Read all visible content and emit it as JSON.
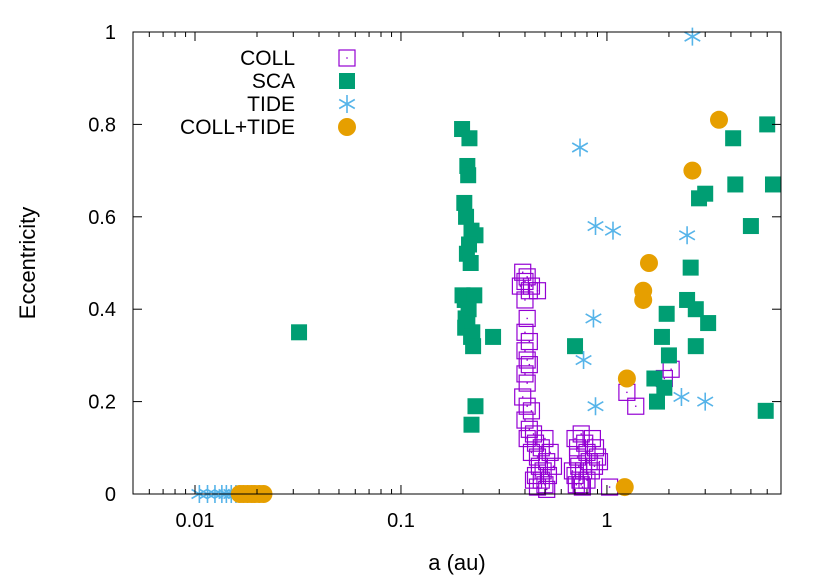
{
  "chart_data": {
    "type": "scatter",
    "title": "",
    "xlabel": "a (au)",
    "ylabel": "Eccentricity",
    "xscale": "log",
    "xlim": [
      0.005,
      7.0
    ],
    "ylim": [
      0,
      1
    ],
    "x_ticks": [
      {
        "value": 0.01,
        "label": "0.01"
      },
      {
        "value": 0.1,
        "label": "0.1"
      },
      {
        "value": 1,
        "label": "1"
      }
    ],
    "y_ticks": [
      {
        "value": 0,
        "label": "0"
      },
      {
        "value": 0.2,
        "label": "0.2"
      },
      {
        "value": 0.4,
        "label": "0.4"
      },
      {
        "value": 0.6,
        "label": "0.6"
      },
      {
        "value": 0.8,
        "label": "0.8"
      },
      {
        "value": 1,
        "label": "1"
      }
    ],
    "legend_position": "top-left",
    "grid": false,
    "series": [
      {
        "name": "COLL",
        "marker": "open-square",
        "color": "#9400d3",
        "points": [
          [
            0.39,
            0.48
          ],
          [
            0.4,
            0.46
          ],
          [
            0.41,
            0.47
          ],
          [
            0.42,
            0.44
          ],
          [
            0.38,
            0.45
          ],
          [
            0.43,
            0.45
          ],
          [
            0.46,
            0.44
          ],
          [
            0.4,
            0.42
          ],
          [
            0.41,
            0.38
          ],
          [
            0.4,
            0.35
          ],
          [
            0.42,
            0.33
          ],
          [
            0.4,
            0.31
          ],
          [
            0.41,
            0.29
          ],
          [
            0.42,
            0.28
          ],
          [
            0.4,
            0.26
          ],
          [
            0.41,
            0.24
          ],
          [
            0.39,
            0.21
          ],
          [
            0.41,
            0.19
          ],
          [
            0.43,
            0.18
          ],
          [
            0.4,
            0.16
          ],
          [
            0.42,
            0.14
          ],
          [
            0.44,
            0.13
          ],
          [
            0.41,
            0.12
          ],
          [
            0.45,
            0.11
          ],
          [
            0.43,
            0.09
          ],
          [
            0.46,
            0.08
          ],
          [
            0.48,
            0.1
          ],
          [
            0.5,
            0.12
          ],
          [
            0.47,
            0.06
          ],
          [
            0.49,
            0.05
          ],
          [
            0.51,
            0.07
          ],
          [
            0.45,
            0.04
          ],
          [
            0.48,
            0.03
          ],
          [
            0.5,
            0.02
          ],
          [
            0.52,
            0.04
          ],
          [
            0.55,
            0.06
          ],
          [
            0.53,
            0.09
          ],
          [
            0.46,
            0.015
          ],
          [
            0.44,
            0.03
          ],
          [
            0.51,
            0.01
          ],
          [
            0.7,
            0.12
          ],
          [
            0.72,
            0.1
          ],
          [
            0.75,
            0.13
          ],
          [
            0.78,
            0.11
          ],
          [
            0.8,
            0.09
          ],
          [
            0.82,
            0.07
          ],
          [
            0.85,
            0.12
          ],
          [
            0.88,
            0.1
          ],
          [
            0.9,
            0.08
          ],
          [
            0.73,
            0.06
          ],
          [
            0.77,
            0.05
          ],
          [
            0.7,
            0.04
          ],
          [
            0.74,
            0.03
          ],
          [
            0.71,
            0.02
          ],
          [
            0.76,
            0.015
          ],
          [
            0.8,
            0.03
          ],
          [
            0.84,
            0.05
          ],
          [
            0.87,
            0.06
          ],
          [
            0.92,
            0.07
          ],
          [
            0.72,
            0.08
          ],
          [
            0.68,
            0.05
          ],
          [
            0.75,
            0.02
          ],
          [
            1.03,
            0.015
          ],
          [
            1.25,
            0.22
          ],
          [
            1.38,
            0.19
          ],
          [
            1.9,
            0.25
          ],
          [
            2.05,
            0.27
          ]
        ]
      },
      {
        "name": "SCA",
        "marker": "filled-square",
        "color": "#009e73",
        "points": [
          [
            0.032,
            0.35
          ],
          [
            0.198,
            0.79
          ],
          [
            0.215,
            0.77
          ],
          [
            0.21,
            0.71
          ],
          [
            0.212,
            0.69
          ],
          [
            0.203,
            0.63
          ],
          [
            0.207,
            0.6
          ],
          [
            0.22,
            0.57
          ],
          [
            0.23,
            0.56
          ],
          [
            0.214,
            0.54
          ],
          [
            0.209,
            0.52
          ],
          [
            0.218,
            0.5
          ],
          [
            0.199,
            0.43
          ],
          [
            0.204,
            0.42
          ],
          [
            0.227,
            0.43
          ],
          [
            0.213,
            0.4
          ],
          [
            0.206,
            0.38
          ],
          [
            0.21,
            0.37
          ],
          [
            0.205,
            0.36
          ],
          [
            0.222,
            0.35
          ],
          [
            0.219,
            0.34
          ],
          [
            0.224,
            0.32
          ],
          [
            0.28,
            0.34
          ],
          [
            0.23,
            0.19
          ],
          [
            0.22,
            0.15
          ],
          [
            0.7,
            0.32
          ],
          [
            1.7,
            0.25
          ],
          [
            1.9,
            0.23
          ],
          [
            1.75,
            0.2
          ],
          [
            2.0,
            0.3
          ],
          [
            1.85,
            0.34
          ],
          [
            1.95,
            0.39
          ],
          [
            2.45,
            0.42
          ],
          [
            2.7,
            0.4
          ],
          [
            2.55,
            0.49
          ],
          [
            2.8,
            0.64
          ],
          [
            3.0,
            0.65
          ],
          [
            3.1,
            0.37
          ],
          [
            2.7,
            0.32
          ],
          [
            4.2,
            0.67
          ],
          [
            4.1,
            0.77
          ],
          [
            5.0,
            0.58
          ],
          [
            6.0,
            0.8
          ],
          [
            6.4,
            0.67
          ],
          [
            5.9,
            0.18
          ]
        ]
      },
      {
        "name": "TIDE",
        "marker": "asterisk",
        "color": "#56b4e9",
        "points": [
          [
            0.0105,
            0.0
          ],
          [
            0.0115,
            0.0
          ],
          [
            0.0125,
            0.0
          ],
          [
            0.0135,
            0.0
          ],
          [
            0.0142,
            0.0
          ],
          [
            0.015,
            0.0
          ],
          [
            0.0158,
            0.0
          ],
          [
            0.74,
            0.75
          ],
          [
            0.88,
            0.58
          ],
          [
            1.07,
            0.57
          ],
          [
            2.45,
            0.56
          ],
          [
            0.86,
            0.38
          ],
          [
            0.77,
            0.29
          ],
          [
            0.88,
            0.19
          ],
          [
            2.3,
            0.21
          ],
          [
            3.0,
            0.2
          ],
          [
            2.6,
            0.99
          ]
        ]
      },
      {
        "name": "COLL+TIDE",
        "marker": "filled-circle",
        "color": "#e69f00",
        "points": [
          [
            0.0165,
            0.0
          ],
          [
            0.0172,
            0.0
          ],
          [
            0.018,
            0.0
          ],
          [
            0.0188,
            0.0
          ],
          [
            0.0195,
            0.0
          ],
          [
            0.0205,
            0.0
          ],
          [
            0.0215,
            0.0
          ],
          [
            3.5,
            0.81
          ],
          [
            2.6,
            0.7
          ],
          [
            1.6,
            0.5
          ],
          [
            1.5,
            0.44
          ],
          [
            1.5,
            0.42
          ],
          [
            1.25,
            0.25
          ],
          [
            1.22,
            0.015
          ]
        ]
      }
    ]
  }
}
